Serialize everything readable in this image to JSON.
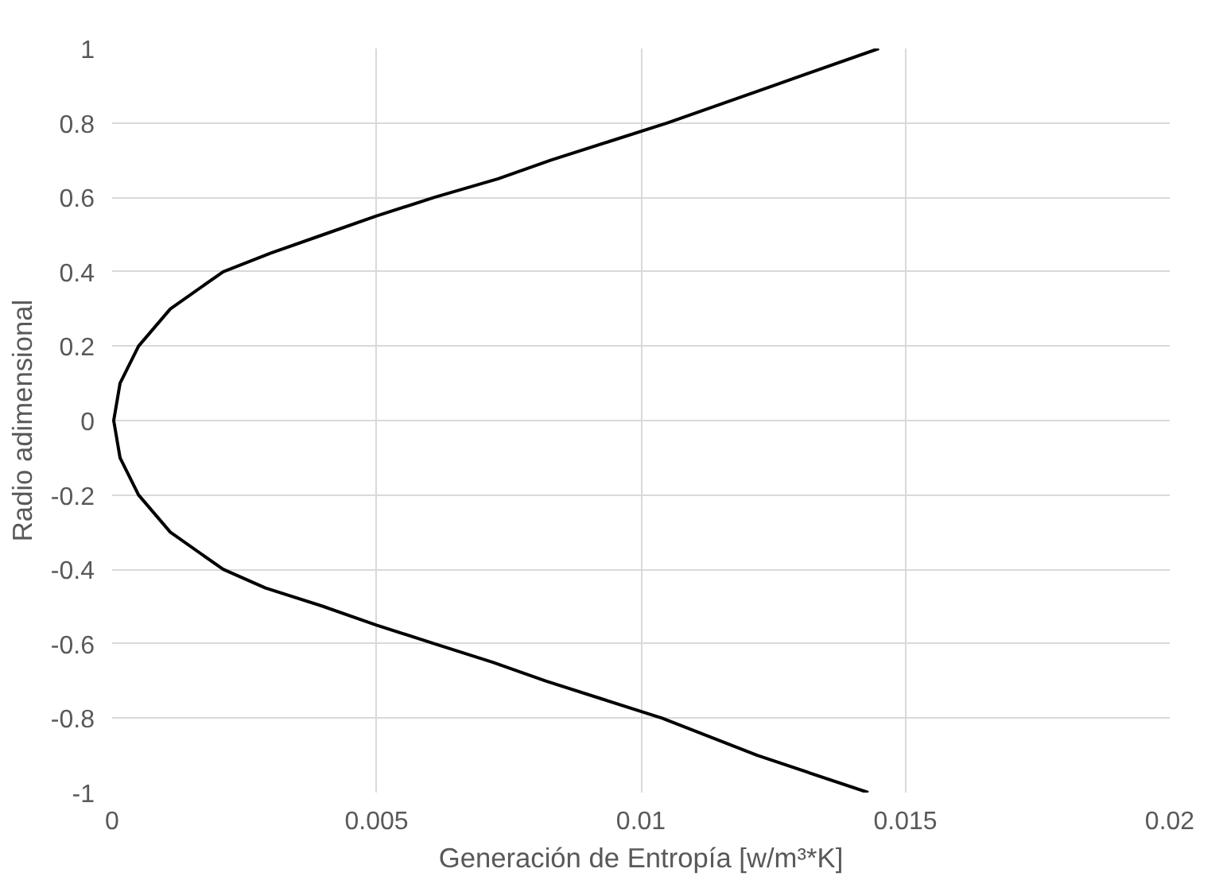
{
  "chart_data": {
    "type": "line",
    "xlabel": "Generación de Entropía [w/m³*K]",
    "ylabel": "Radio adimensional",
    "xlim": [
      0,
      0.02
    ],
    "xticks": [
      0,
      0.005,
      0.01,
      0.015,
      0.02
    ],
    "ylim": [
      -1,
      1
    ],
    "yticks": [
      -1,
      -0.8,
      -0.6,
      -0.4,
      -0.2,
      0,
      0.2,
      0.4,
      0.6,
      0.8,
      1
    ],
    "grid": true,
    "line_style": "solid",
    "series": [
      {
        "color": "#000000",
        "x": [
          0.0143,
          0.0122,
          0.0104,
          0.0093,
          0.0082,
          0.0072,
          0.0061,
          0.005,
          0.004,
          0.0029,
          0.0021,
          0.0011,
          0.0005,
          0.00015,
          3e-05,
          0.00015,
          0.0005,
          0.0011,
          0.0021,
          0.003,
          0.004,
          0.005,
          0.0061,
          0.0073,
          0.0083,
          0.0094,
          0.0105,
          0.0125,
          0.0145
        ],
        "values": [
          -1,
          -0.9,
          -0.8,
          -0.75,
          -0.7,
          -0.65,
          -0.6,
          -0.55,
          -0.5,
          -0.45,
          -0.4,
          -0.3,
          -0.2,
          -0.1,
          0,
          0.1,
          0.2,
          0.3,
          0.4,
          0.45,
          0.5,
          0.55,
          0.6,
          0.65,
          0.7,
          0.75,
          0.8,
          0.9,
          1
        ]
      }
    ]
  }
}
